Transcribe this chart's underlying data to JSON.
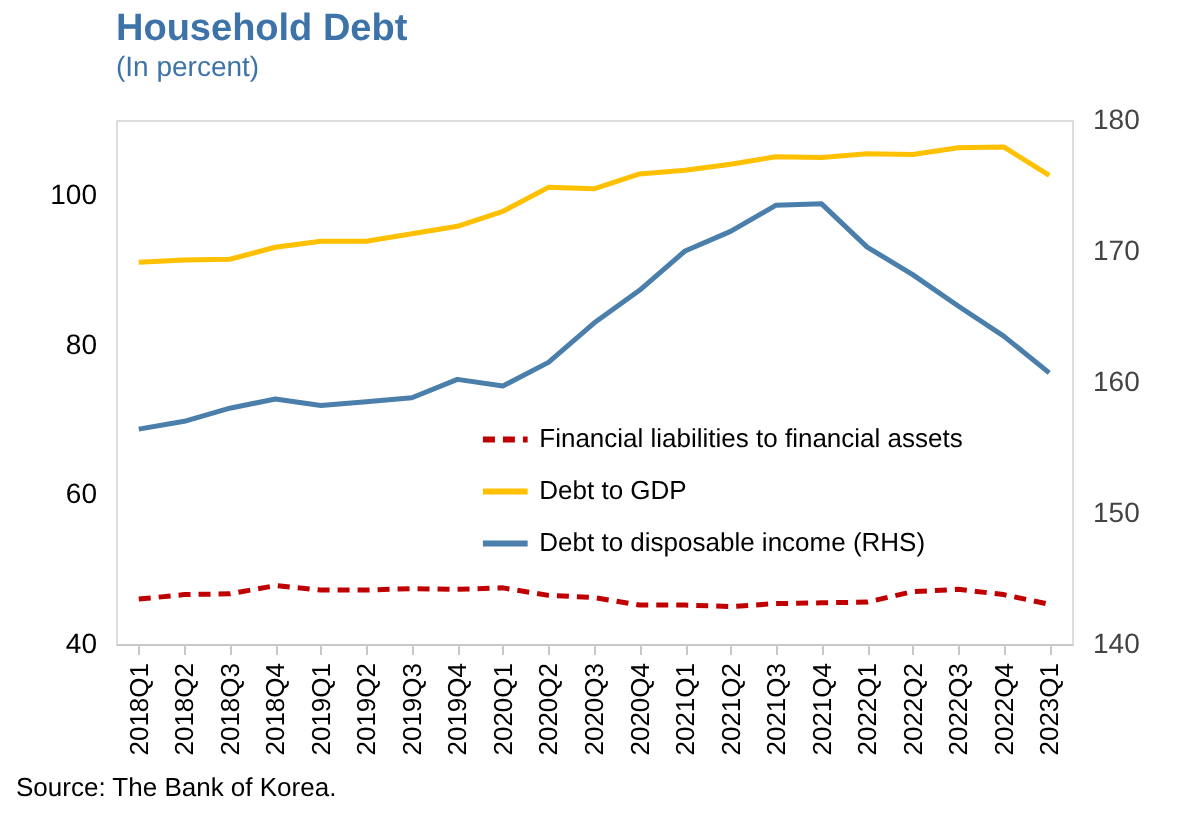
{
  "chart_data": {
    "type": "line",
    "title": "Household Debt",
    "subtitle": "(In percent)",
    "categories": [
      "2018Q1",
      "2018Q2",
      "2018Q3",
      "2018Q4",
      "2019Q1",
      "2019Q2",
      "2019Q3",
      "2019Q4",
      "2020Q1",
      "2020Q2",
      "2020Q3",
      "2020Q4",
      "2021Q1",
      "2021Q2",
      "2021Q3",
      "2021Q4",
      "2022Q1",
      "2022Q2",
      "2022Q3",
      "2022Q4",
      "2023Q1"
    ],
    "series": [
      {
        "name": "Financial liabilities to financial assets",
        "color": "#c00000",
        "line_style": "dashed",
        "values": [
          46.0,
          46.6,
          46.7,
          47.8,
          47.2,
          47.2,
          47.4,
          47.3,
          47.5,
          46.5,
          46.2,
          45.2,
          45.2,
          45.0,
          45.4,
          45.5,
          45.6,
          47.0,
          47.3,
          46.6,
          45.3
        ]
      },
      {
        "name": "Debt to GDP",
        "color": "#ffc000",
        "line_style": "solid",
        "values": [
          91.0,
          91.3,
          91.4,
          93.0,
          93.8,
          93.8,
          94.8,
          95.8,
          97.8,
          101.0,
          100.8,
          102.8,
          103.3,
          104.1,
          105.1,
          105.0,
          105.5,
          105.4,
          106.3,
          106.4,
          102.6
        ]
      },
      {
        "name": "Debt to disposable income (RHS)",
        "color": "#4a7fab",
        "line_style": "solid",
        "axis": "y2",
        "values": [
          156.4,
          157.0,
          158.0,
          158.7,
          158.2,
          158.5,
          158.8,
          160.2,
          159.7,
          161.5,
          164.5,
          167.0,
          170.0,
          171.5,
          173.5,
          173.6,
          170.3,
          168.2,
          165.8,
          163.5,
          160.7
        ]
      }
    ],
    "ylim": [
      40,
      110
    ],
    "yticks": [
      40,
      60,
      80,
      100
    ],
    "y2lim": [
      140,
      180
    ],
    "y2ticks": [
      140,
      150,
      160,
      170,
      180
    ],
    "grid": false,
    "legend": "right",
    "marker": "none",
    "annotations": [
      "Source: The Bank of Korea."
    ]
  }
}
